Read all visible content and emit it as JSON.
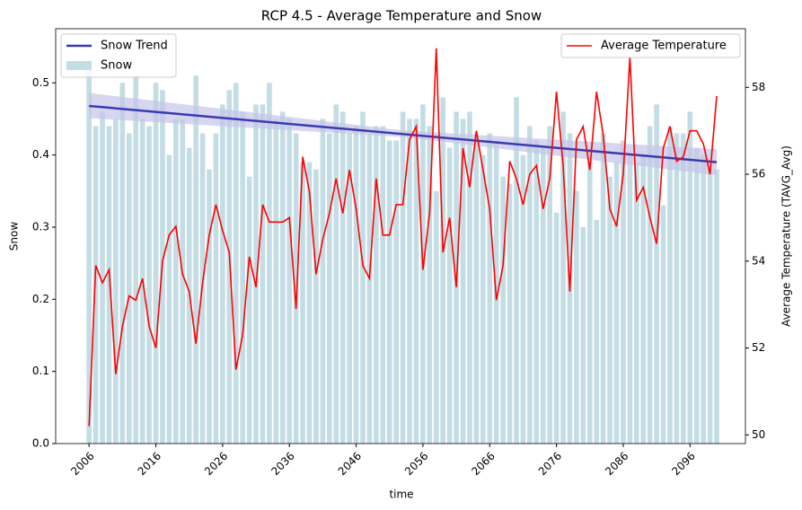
{
  "chart_data": {
    "type": "combo",
    "title": "RCP 4.5 - Average Temperature and Snow",
    "xlabel": "time",
    "ylabel": "Snow",
    "ylabel_color": "#87ceeb",
    "y2label": "Average Temperature (TAVG_Avg)",
    "y2label_color": "red",
    "x": [
      2006,
      2007,
      2008,
      2009,
      2010,
      2011,
      2012,
      2013,
      2014,
      2015,
      2016,
      2017,
      2018,
      2019,
      2020,
      2021,
      2022,
      2023,
      2024,
      2025,
      2026,
      2027,
      2028,
      2029,
      2030,
      2031,
      2032,
      2033,
      2034,
      2035,
      2036,
      2037,
      2038,
      2039,
      2040,
      2041,
      2042,
      2043,
      2044,
      2045,
      2046,
      2047,
      2048,
      2049,
      2050,
      2051,
      2052,
      2053,
      2054,
      2055,
      2056,
      2057,
      2058,
      2059,
      2060,
      2061,
      2062,
      2063,
      2064,
      2065,
      2066,
      2067,
      2068,
      2069,
      2070,
      2071,
      2072,
      2073,
      2074,
      2075,
      2076,
      2077,
      2078,
      2079,
      2080,
      2081,
      2082,
      2083,
      2084,
      2085,
      2086,
      2087,
      2088,
      2089,
      2090,
      2091,
      2092,
      2093,
      2094,
      2095,
      2096,
      2097,
      2098,
      2099,
      2100
    ],
    "xlim": [
      2001,
      2104.3
    ],
    "xticks": [
      2006,
      2016,
      2026,
      2036,
      2046,
      2056,
      2066,
      2076,
      2086,
      2096
    ],
    "ylim": [
      0,
      0.575
    ],
    "yticks": [
      {
        "value": 0,
        "label": "0.0"
      },
      0.1,
      0.2,
      0.3,
      0.4,
      0.5
    ],
    "y2lim": [
      49.8,
      59.35
    ],
    "y2ticks": [
      50,
      52,
      54,
      56,
      58
    ],
    "series": [
      {
        "name": "Snow",
        "type": "bar",
        "color": "#c4dde5",
        "values": [
          0.53,
          0.44,
          0.46,
          0.44,
          0.45,
          0.5,
          0.43,
          0.51,
          0.45,
          0.44,
          0.5,
          0.49,
          0.4,
          0.45,
          0.45,
          0.41,
          0.51,
          0.43,
          0.38,
          0.43,
          0.47,
          0.49,
          0.5,
          0.46,
          0.37,
          0.47,
          0.47,
          0.5,
          0.45,
          0.46,
          0.45,
          0.43,
          0.39,
          0.39,
          0.38,
          0.45,
          0.43,
          0.47,
          0.46,
          0.43,
          0.44,
          0.46,
          0.43,
          0.44,
          0.44,
          0.42,
          0.42,
          0.46,
          0.45,
          0.45,
          0.47,
          0.44,
          0.35,
          0.48,
          0.41,
          0.46,
          0.45,
          0.46,
          0.43,
          0.4,
          0.43,
          0.42,
          0.37,
          0.36,
          0.48,
          0.4,
          0.44,
          0.42,
          0.41,
          0.44,
          0.32,
          0.46,
          0.43,
          0.35,
          0.3,
          0.41,
          0.31,
          0.43,
          0.37,
          0.39,
          0.42,
          0.4,
          0.39,
          0.4,
          0.44,
          0.47,
          0.33,
          0.44,
          0.43,
          0.43,
          0.46,
          0.41,
          0.4,
          0.38,
          0.38
        ]
      },
      {
        "name": "Average Temperature",
        "type": "line",
        "axis": "y2",
        "color": "#ff0000",
        "values": [
          50.2,
          53.9,
          53.5,
          53.8,
          51.4,
          52.5,
          53.2,
          53.1,
          53.6,
          52.5,
          52.0,
          54.0,
          54.6,
          54.8,
          53.7,
          53.3,
          52.1,
          53.5,
          54.6,
          55.3,
          54.7,
          54.2,
          51.5,
          52.3,
          54.1,
          53.4,
          55.3,
          54.9,
          54.9,
          54.9,
          55.0,
          52.9,
          56.4,
          55.6,
          53.7,
          54.5,
          55.1,
          55.9,
          55.1,
          56.1,
          55.2,
          53.9,
          53.6,
          55.9,
          54.6,
          54.6,
          55.3,
          55.3,
          56.8,
          57.1,
          53.8,
          55.1,
          58.9,
          54.2,
          55.0,
          53.4,
          56.6,
          55.7,
          57.0,
          56.1,
          55.2,
          53.1,
          53.9,
          56.3,
          55.9,
          55.3,
          56.0,
          56.2,
          55.2,
          55.9,
          57.9,
          56.2,
          53.3,
          56.8,
          57.1,
          56.1,
          57.9,
          56.9,
          55.2,
          54.8,
          56.0,
          58.7,
          55.4,
          55.7,
          55.0,
          54.4,
          56.6,
          57.1,
          56.3,
          56.4,
          57.0,
          57.0,
          56.7,
          56.0,
          57.8
        ]
      }
    ],
    "trend": {
      "name": "Snow Trend",
      "color": "#3a3ab0",
      "band_color": "#c5c5ea",
      "x": [
        2006,
        2053,
        2100
      ],
      "values": [
        0.468,
        0.429,
        0.39
      ],
      "band_lower": [
        0.451,
        0.425,
        0.372
      ],
      "band_upper": [
        0.486,
        0.434,
        0.408
      ]
    },
    "legend": [
      "upper left",
      "upper right"
    ]
  }
}
